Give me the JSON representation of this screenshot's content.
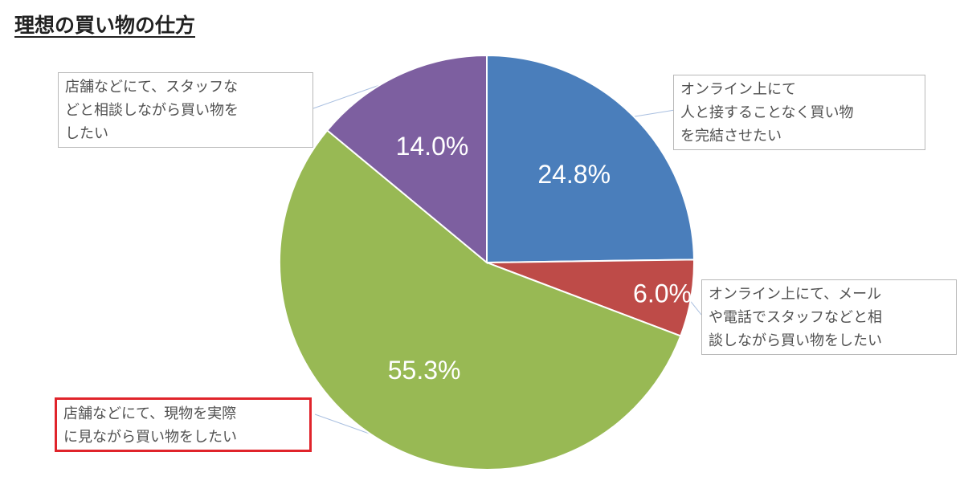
{
  "title": "理想の買い物の仕方",
  "chart_data": {
    "type": "pie",
    "title": "理想の買い物の仕方",
    "start": "12 o'clock",
    "direction": "clockwise",
    "slices": [
      {
        "label": "オンライン上にて\n人と接することなく買い物\nを完結させたい",
        "value": 24.8,
        "value_label": "24.8%",
        "color": "#4a7ebb"
      },
      {
        "label": "オンライン上にて、メール\nや電話でスタッフなどと相\n談しながら買い物をしたい",
        "value": 6.0,
        "value_label": "6.0%",
        "color": "#be4b48"
      },
      {
        "label": "店舗などにて、現物を実際\nに見ながら買い物をしたい",
        "value": 55.3,
        "value_label": "55.3%",
        "color": "#98b954",
        "highlighted": true
      },
      {
        "label": "店舗などにて、スタッフな\nどと相談しながら買い物を\nしたい",
        "value": 14.0,
        "value_label": "14.0%",
        "color": "#7d5fa0"
      }
    ]
  }
}
